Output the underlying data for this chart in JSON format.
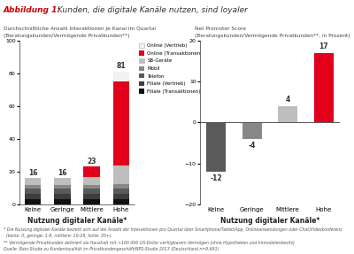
{
  "title_red": "Abbildung 1: ",
  "title_black": " Kunden, die digitale Kanäle nutzen, sind loyaler",
  "left_subtitle_line1": "Durchschnittliche Anzahl Interaktionen je Kanal im Quartal",
  "left_subtitle_line2": "(Beratungskunden/Vermögende Privatkunden**)",
  "right_subtitle_line1": "Net Promoter Score",
  "right_subtitle_line2": "(Beratungskunden/Vermögende Privatkunden**, in Prozent)",
  "categories": [
    "Keine",
    "Geringe",
    "Mittlere",
    "Hohe"
  ],
  "xlabel": "Nutzung digitaler Kanäle*",
  "stacked_keys_order": [
    "Filiale (Transaktionen)",
    "Filiale (Vertrieb)",
    "Telefon",
    "Mobil",
    "SB-Geräte",
    "Online (Transaktionen)",
    "Online (Vertrieb)"
  ],
  "stacked_data": {
    "Filiale (Transaktionen)": [
      3.0,
      3.0,
      3.0,
      3.0
    ],
    "Filiale (Vertrieb)": [
      3.5,
      3.5,
      3.5,
      3.5
    ],
    "Telefon": [
      3.0,
      3.0,
      3.0,
      3.0
    ],
    "Mobil": [
      2.5,
      2.5,
      2.5,
      3.0
    ],
    "SB-Geräte": [
      4.0,
      4.0,
      5.0,
      11.5
    ],
    "Online (Transaktionen)": [
      0.0,
      0.0,
      6.0,
      51.0
    ],
    "Online (Vertrieb)": [
      0.0,
      0.0,
      0.0,
      6.0
    ]
  },
  "bar_totals": [
    16,
    16,
    23,
    81
  ],
  "stacked_colors": {
    "Filiale (Transaktionen)": "#111111",
    "Filiale (Vertrieb)": "#3d3d3d",
    "Telefon": "#5a5a5a",
    "Mobil": "#888888",
    "SB-Geräte": "#bebebe",
    "Online (Transaktionen)": "#e2001a",
    "Online (Vertrieb)": "#f2f2f2"
  },
  "nps_values": [
    -12,
    -4,
    4,
    17
  ],
  "nps_colors": [
    "#5a5a5a",
    "#888888",
    "#bebebe",
    "#e2001a"
  ],
  "footnote1": "* Die Nutzung digitaler Kanäle bezieht sich auf die Anzahl der Interaktionen pro Quartal über Smartphone/Tablet/App, Onlineanwendungen oder Chat/Videokonferenz",
  "footnote2": "  (keine: 0, geringe: 1-9, mittlere: 10-29, hohe: 30+).",
  "footnote3": "** Vermögende Privatkunden definiert als Haushalt mit >100.000 US-Dollar verfügbarem Vermögen (ohne Hypotheken und Immobilienbesitz)",
  "footnote4": "Quelle: Bain-Studie zu Kundenloyalität im Privatkundengeschäft/NPS-Studie 2013 (Deutschland n=9.691)"
}
